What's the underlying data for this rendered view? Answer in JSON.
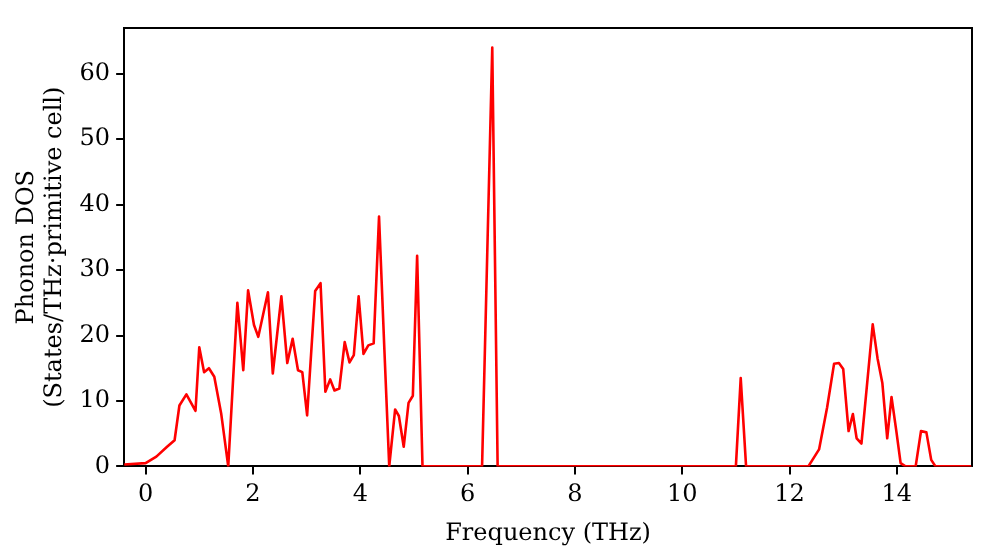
{
  "chart_data": {
    "type": "line",
    "xlabel": "Frequency (THz)",
    "ylabel": "Phonon DOS\n(States/THz·primitive cell)",
    "xlim": [
      -0.4,
      15.4
    ],
    "xticks": [
      0,
      2,
      4,
      6,
      8,
      10,
      12,
      14
    ],
    "ylim": [
      0,
      67
    ],
    "yticks": [
      0,
      10,
      20,
      30,
      40,
      50,
      60
    ],
    "grid": false,
    "legend": false,
    "marker": "none",
    "line_style": "solid",
    "series": [
      {
        "color": "#ff0000",
        "x": [
          -0.4,
          0.0,
          0.2,
          0.4,
          0.54,
          0.63,
          0.76,
          0.93,
          1.0,
          1.09,
          1.18,
          1.28,
          1.41,
          1.54,
          1.71,
          1.82,
          1.91,
          2.02,
          2.1,
          2.28,
          2.37,
          2.53,
          2.64,
          2.74,
          2.84,
          2.92,
          3.01,
          3.16,
          3.26,
          3.35,
          3.44,
          3.52,
          3.61,
          3.71,
          3.8,
          3.88,
          3.97,
          4.06,
          4.15,
          4.25,
          4.35,
          4.45,
          4.54,
          4.65,
          4.72,
          4.81,
          4.9,
          4.98,
          5.06,
          5.16,
          6.27,
          6.46,
          6.56,
          11.0,
          11.09,
          11.19,
          12.35,
          12.55,
          12.7,
          12.83,
          12.92,
          13.0,
          13.1,
          13.18,
          13.25,
          13.34,
          13.55,
          13.64,
          13.73,
          13.82,
          13.9,
          13.99,
          14.07,
          14.16,
          14.35,
          14.45,
          14.55,
          14.64,
          14.72,
          15.4
        ],
        "values": [
          0.3,
          0.5,
          1.5,
          3,
          4,
          9.3,
          11,
          8.5,
          18.2,
          14.4,
          15,
          13.7,
          8,
          0,
          25,
          14.7,
          26.9,
          21.6,
          19.8,
          26.6,
          14.2,
          26,
          15.8,
          19.5,
          14.7,
          14.4,
          7.8,
          26.8,
          28,
          11.4,
          13.3,
          11.6,
          11.9,
          19,
          15.9,
          17,
          26,
          17.2,
          18.5,
          18.8,
          38.2,
          17.8,
          0,
          8.7,
          7.7,
          3,
          9.7,
          10.8,
          32.2,
          0,
          0,
          64,
          0,
          0,
          13.5,
          0,
          0,
          2.6,
          9,
          15.7,
          15.8,
          14.9,
          5.4,
          8,
          4.3,
          3.5,
          21.7,
          16.5,
          12.7,
          4.3,
          10.6,
          5.4,
          0.5,
          0,
          0,
          5.4,
          5.2,
          1,
          0,
          0
        ]
      }
    ]
  }
}
